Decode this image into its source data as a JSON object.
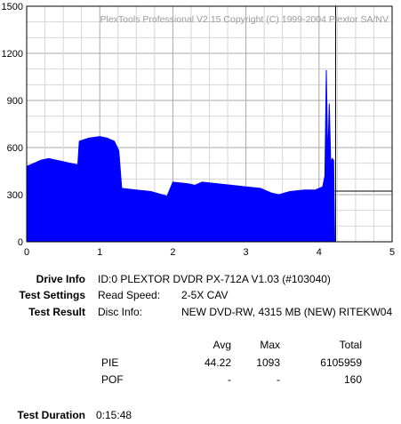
{
  "chart_data": {
    "type": "area",
    "watermark": "PlexTools Professional V2.15 Copyright (C) 1999-2004 Plextor SA/NV",
    "xlim": [
      0,
      5
    ],
    "ylim": [
      0,
      1500
    ],
    "x_ticks": [
      0,
      1,
      2,
      3,
      4,
      5
    ],
    "y_ticks": [
      0,
      300,
      600,
      900,
      1200,
      1500
    ],
    "grid": true,
    "series": [
      {
        "color": "#0000ff",
        "x": [
          0,
          0.1,
          0.2,
          0.3,
          0.4,
          0.5,
          0.6,
          0.7,
          0.72,
          0.85,
          1.0,
          1.1,
          1.2,
          1.26,
          1.3,
          1.5,
          1.7,
          1.85,
          1.92,
          2.0,
          2.2,
          2.3,
          2.4,
          2.6,
          2.8,
          3.0,
          3.2,
          3.35,
          3.45,
          3.6,
          3.8,
          3.95,
          4.05,
          4.08,
          4.1,
          4.12,
          4.14,
          4.16,
          4.18,
          4.2,
          4.215
        ],
        "y": [
          480,
          500,
          520,
          530,
          520,
          510,
          500,
          490,
          640,
          660,
          670,
          660,
          640,
          580,
          340,
          330,
          320,
          300,
          290,
          380,
          370,
          360,
          380,
          370,
          360,
          350,
          340,
          310,
          300,
          320,
          330,
          330,
          350,
          420,
          1093,
          520,
          880,
          500,
          530,
          520,
          0
        ]
      }
    ],
    "reference_line": 300
  },
  "info": {
    "drive_info_label": "Drive Info",
    "drive_info_value": "ID:0 PLEXTOR DVDR PX-712A V1.03 (#103040)",
    "test_settings_label": "Test Settings",
    "read_speed_label": "Read Speed:",
    "read_speed_value": "2-5X CAV",
    "test_result_label": "Test Result",
    "disc_info_label": "Disc Info:",
    "disc_info_value": "NEW DVD-RW, 4315 MB (NEW) RITEKW04"
  },
  "results": {
    "headers": {
      "avg": "Avg",
      "max": "Max",
      "total": "Total"
    },
    "rows": [
      {
        "name": "PIE",
        "avg": "44.22",
        "max": "1093",
        "total": "6105959"
      },
      {
        "name": "POF",
        "avg": "-",
        "max": "-",
        "total": "160"
      }
    ]
  },
  "duration": {
    "label": "Test Duration",
    "value": "0:15:48"
  }
}
